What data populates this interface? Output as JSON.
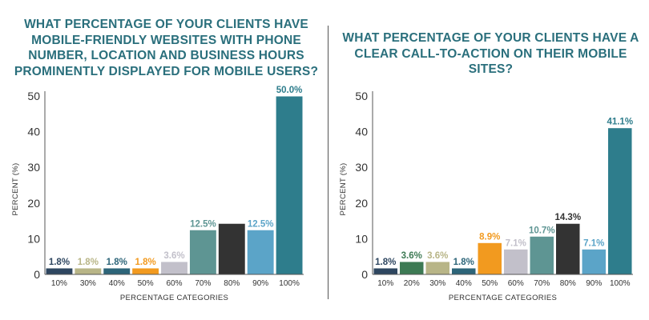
{
  "chart_data": [
    {
      "type": "bar",
      "title": "WHAT PERCENTAGE OF YOUR CLIENTS HAVE MOBILE-FRIENDLY WEBSITES WITH PHONE NUMBER, LOCATION AND BUSINESS HOURS PROMINENTLY DISPLAYED FOR MOBILE USERS?",
      "xlabel": "PERCENTAGE CATEGORIES",
      "ylabel": "PERCENT (%)",
      "ylim": [
        0,
        50
      ],
      "yticks": [
        0,
        10,
        20,
        30,
        40,
        50
      ],
      "grid": false,
      "categories": [
        "10%",
        "30%",
        "40%",
        "50%",
        "60%",
        "70%",
        "80%",
        "90%",
        "100%"
      ],
      "values": [
        1.8,
        1.8,
        1.8,
        1.8,
        3.6,
        12.5,
        14.3,
        12.5,
        50.0
      ],
      "data_labels": [
        "1.8%",
        "1.8%",
        "1.8%",
        "1.8%",
        "3.6%",
        "12.5%",
        "",
        "12.5%",
        "50.0%"
      ],
      "colors": [
        "#2e4660",
        "#b8b587",
        "#2d6579",
        "#f29a1f",
        "#c2c0ca",
        "#5e9593",
        "#333333",
        "#5ba4c8",
        "#2e7d8c"
      ],
      "label_colors": [
        "#2e4660",
        "#b8b587",
        "#2d6579",
        "#f29a1f",
        "#c2c0ca",
        "#5e9593",
        "#333333",
        "#5ba4c8",
        "#2e7d8c"
      ]
    },
    {
      "type": "bar",
      "title": "WHAT PERCENTAGE OF YOUR CLIENTS HAVE A CLEAR CALL-TO-ACTION ON THEIR MOBILE SITES?",
      "xlabel": "PERCENTAGE CATEGORIES",
      "ylabel": "PERCENT (%)",
      "ylim": [
        0,
        50
      ],
      "yticks": [
        0,
        10,
        20,
        30,
        40,
        50
      ],
      "grid": false,
      "categories": [
        "10%",
        "20%",
        "30%",
        "40%",
        "50%",
        "60%",
        "70%",
        "80%",
        "90%",
        "100%"
      ],
      "values": [
        1.8,
        3.6,
        3.6,
        1.8,
        8.9,
        7.1,
        10.7,
        14.3,
        7.1,
        41.1
      ],
      "data_labels": [
        "1.8%",
        "3.6%",
        "3.6%",
        "1.8%",
        "8.9%",
        "7.1%",
        "10.7%",
        "14.3%",
        "7.1%",
        "41.1%"
      ],
      "colors": [
        "#2e4660",
        "#3d7a54",
        "#b8b587",
        "#2d6579",
        "#f29a1f",
        "#c2c0ca",
        "#5e9593",
        "#333333",
        "#5ba4c8",
        "#2e7d8c"
      ],
      "label_colors": [
        "#2e4660",
        "#3d7a54",
        "#b8b587",
        "#2d6579",
        "#f29a1f",
        "#c2c0ca",
        "#5e9593",
        "#333333",
        "#5ba4c8",
        "#2e7d8c"
      ]
    }
  ]
}
